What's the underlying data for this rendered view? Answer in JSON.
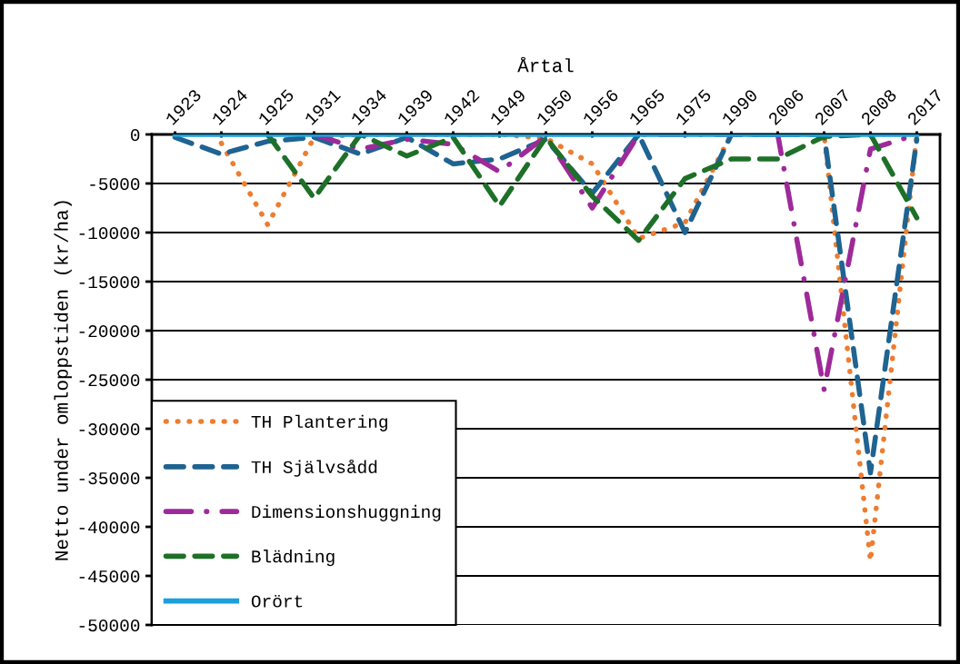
{
  "chart_data": {
    "type": "line",
    "xlabel": "Årtal",
    "ylabel": "Netto under omloppstiden (kr/ha)",
    "categories": [
      "1923",
      "1924",
      "1925",
      "1931",
      "1934",
      "1939",
      "1942",
      "1949",
      "1950",
      "1956",
      "1965",
      "1975",
      "1990",
      "2006",
      "2007",
      "2008",
      "2017"
    ],
    "ylim": [
      -50000,
      0
    ],
    "yticks": [
      0,
      -5000,
      -10000,
      -15000,
      -20000,
      -25000,
      -30000,
      -35000,
      -40000,
      -45000,
      -50000
    ],
    "grid": "y",
    "legend": "bottom left",
    "marker": "none",
    "series": [
      {
        "name": "TH Plantering",
        "color": "#ed7d31",
        "line_style": "dotted",
        "values": [
          null,
          -900,
          -9200,
          -300,
          0,
          0,
          0,
          0,
          -400,
          -3000,
          -10600,
          -9000,
          0,
          0,
          0,
          -43500,
          0
        ]
      },
      {
        "name": "TH Självsådd",
        "color": "#1f6391",
        "line_style": "dashed",
        "values": [
          -300,
          -2000,
          -700,
          -300,
          -2000,
          -300,
          -3000,
          -2500,
          -500,
          -6000,
          0,
          -10000,
          0,
          0,
          0,
          -34500,
          -500
        ]
      },
      {
        "name": "Dimensionshuggning",
        "color": "#9e2a9a",
        "line_style": "dashdot",
        "values": [
          null,
          null,
          null,
          0,
          -1500,
          -500,
          -1000,
          -3800,
          -200,
          -7500,
          0,
          0,
          0,
          0,
          -26000,
          -1500,
          0
        ]
      },
      {
        "name": "Blädning",
        "color": "#1e7028",
        "line_style": "dashed",
        "values": [
          null,
          null,
          0,
          -6500,
          0,
          -2200,
          -300,
          -7300,
          -300,
          -6300,
          -10800,
          -4500,
          -2500,
          -2500,
          -200,
          0,
          -8500
        ]
      },
      {
        "name": "Orört",
        "color": "#1aa0dc",
        "line_style": "solid",
        "values": [
          0,
          0,
          0,
          0,
          0,
          0,
          0,
          0,
          0,
          0,
          0,
          0,
          0,
          0,
          0,
          0,
          0
        ]
      }
    ]
  }
}
